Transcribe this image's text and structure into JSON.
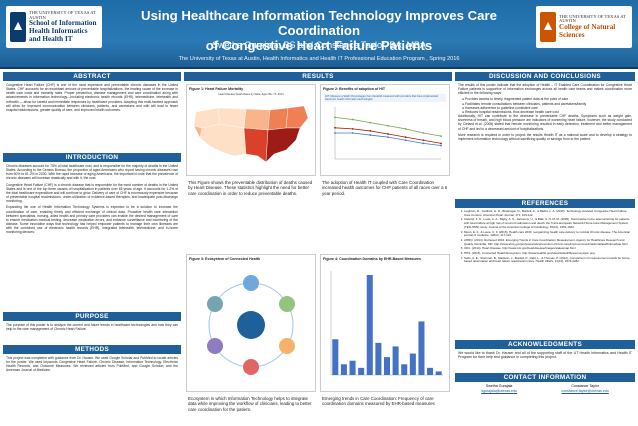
{
  "header": {
    "logo_left_top": "THE UNIVERSITY OF TEXAS AT AUSTIN",
    "logo_left_main": "School of Information",
    "logo_left_sub": "Health Informatics and Health IT",
    "logo_right_top": "THE UNIVERSITY OF TEXAS AT AUSTIN",
    "logo_right_main": "College of Natural Sciences",
    "title_line1": "Using Healthcare Information Technology Improves Care Coordination",
    "title_line2": "of Congestive Heart Failure Patients",
    "authors": "Swetha Gurajala, BS and Constance Taylor, BA, MBA",
    "affiliation": "The University of Texas at Austin, Health Informatics and Health IT Professional Education Program , Spring 2016"
  },
  "abstract": {
    "heading": "ABSTRACT",
    "text": "Congestive Heart Failure (CHF) is one of the most expensive and preventable chronic diseases in the United States. CHF accounts for an exorbitant amount of preventable hospitalizations, the leading cause of the increase in health care costs and mortality rates. Proper prevention, disease management and care coordination along with advancements in information technology—including electronic health records (EHR), telemedicine, telehealth and mHealth — allow for careful and immediate responses by healthcare providers. Adopting this multi-faceted approach will allow for improved communication between clinicians, patients, and caretakers and with will lead to fewer hospital readmissions, greater quality of care, and improved health outcomes."
  },
  "introduction": {
    "heading": "INTRODUCTION",
    "p1": "Chronic diseases account for 75% of total healthcare cost, and is responsible for the majority of deaths in the United States. According to the Census Bureau, the proportion of aged Americans who report having chronic diseases rose from 60% to 81.2% in 2030. With the rapid increase of aging Americans, the important to note that the prevalence of chronic diseases will increase drastically and with it, the cost.",
    "p2": "Congestive Heart Failure (CHF) is a chronic disease that is responsible for the most number of deaths in the United States and is one of the top three causes of hospitalization in patients over 65 years of age. It accounts for 1-2% of the total healthcare expenditure and will continue to grow. Delivery of care of CHF is enormously expensive because of preventable hospital readmissions, under-utilization of evidence-based therapies, and inadequate post-discharge monitoring.",
    "p3": "Expanding the use of Health Information Technology Systems is expected to be a solution to increase the coordination of care, enabling timely and efficient exchange of clinical data. Proactive health care interaction between specialists, nursing, allied health and primary care providers can enable the desired management of care to ensure medication medical testing, decrease medication errors, and enhance surveillance and monitoring of the disease. Some innovative ways that technology has helped empower patients to manage their own illnesses are with the combined use of electronic health records (EHR), integrated telehealth, telemedicine, and in-home monitoring devices."
  },
  "purpose": {
    "heading": "PURPOSE",
    "text": "The purpose of this poster is to analyze the current and future trends in healthcare technologies and how they can help in the care management of Chronic Heart Failure."
  },
  "methods": {
    "heading": "METHODS",
    "text": "This project was completed with guidance from Dr. Hauser. We used Google Scholar and PubMed to locate articles for the poster. We used keywords Congestive Heart Failure, Chronic Disease, Information Technology, Electronic Health Records, and Outcome Measures. We reviewed articles from PubMed, and Google Scholar, and the American Journal of Medicine."
  },
  "results": {
    "heading": "RESULTS",
    "fig1_caption": "Figure 1: Heart Failure Mortality",
    "fig1_map_title": "Heart Disease Death Rates by State, Ages 65+ Th. 2014",
    "fig1_desc": "This Figure shows the preventable distribution of deaths caused by Heart Disease. These statistics highlight the need for better care coordination in order to reduce preventable deaths.",
    "fig2_caption": "Figure 2: Benefits of adoption of HIT",
    "fig2_banner": "HIT: Measure of EHR: Percentages from the EHR measured with providers that have implemented electronic health information technologies",
    "fig2_desc": "The adoption of Health IT coupled with Care Coordination increased health outcomes for CHF patients of all races over a 6 year period.",
    "fig3_caption": "Figure 3: Ecosystem of Connected Health",
    "fig3_desc": "Ecosystem in which Information Technology helps to integrate data while improving the workflow of clinicians, leading to better care coordination for the patient.",
    "fig4_caption": "Figure 4: Coordination Domains by EHR-Based Measures",
    "fig4_desc": "Emerging trends in Care Coordination: Frequency of care coordination domains measured by EHR-based measures"
  },
  "discussion": {
    "heading": "DISCUSSION AND CONCLUSIONS",
    "p1": "The results of this poster indicate that the adoption of Health – IT Enabled Care Coordination for Congestive Heart Failure patients is supportive of information exchanges across all health care teams and makes coordination more efficient in the following ways:",
    "bullets": [
      "Provides access to timely, fragmented patient data at the point of care",
      "Facilitates remote consultations between clinicians, patients and caretakers/family",
      "Increases adherence to guideline-consistent care",
      "Reduces hospital readmissions, thus decrease health care cost"
    ],
    "p2": "Additionally, HIT can contribute to the decrease in preventable CHF deaths. Symptoms such as weight gain, shortness of breath, and high blood pressure are indicators of worsening heart failure, however, the study conducted by Cleland et.al. (2005) stated that remote monitoring resulted in early detection, treatment and better management of CHF and led to a decreased amount of hospitalizations.",
    "p3": "More research is required in order to project the results Health IT as a national scale and to develop a strategy to implement information technology without sacrificing quality or savings from to the patient."
  },
  "references": {
    "heading": "REFERENCES",
    "items": [
      "Leighton, R., Yardbird, G. R., Bhatnagar, D., Bartlett, A., & Barba, L. A. (2015). Technology-Assisted Congestive Heart Failure Care Centers. American Heart Journal, 171, 103-112.",
      "Cleland, J. G., Louis, A. A., Rigby, A. S., Janssens, U., & Balk, A. H. M. M. (2005). Noninvasive home telemonitoring for patients with heart failure at high risk of recurrent admission and death: the Trans-European Network-Home-Care Management System (TEN-HMS) study. Journal of the American College of Cardiology, 45(10), 1654-1664.",
      "Moon, E. F., & Louie, C. F. (2015). Health care 2030: reorganizing health care delivery to combat chronic disease. The American journal of medicine, 128(2), 117-123.",
      "AHRQ. (2014). Retrieved 2016. Emerging Trends in Care Coordination Measurement. Agency for Healthcare Research and Quality, Rockville, MD. http://www.ahrq.gov/professionals/prevention-chronic-care/improve/coordination/atlas2014/update.html",
      "CDC. (2014). Heart Disease. http://www.cdc.gov/heartdisease/images/statesmap.html",
      "HHS. (2015). Connected Health Ecosystem. http://www.healthit.gov/sites/default/files/ecosystem.png",
      "Seifu, A. E., Sherman, B., Madison, J., Burdell, P., Dahl, L., & Thomas, P. (2012). Comparison of measurement results for home-based observation and heart failure readmission rates. Health Affairs, 31(10), 2274-2282."
    ]
  },
  "acknowledgments": {
    "heading": "ACKNOWLEDGMENTS",
    "text": "We would like to thank Dr. Hauser and all of the supporting staff of the UT Health Informatics and Health IT Program for their help and guidance in completing this project."
  },
  "contact": {
    "heading": "CONTACT INFORMATION",
    "name1": "Swetha Gurajala",
    "email1": "sgurajala@utexas.edu",
    "name2": "Constance Taylor",
    "email2": "constance.taylor@utexas.edu"
  },
  "chart_data": [
    {
      "type": "line",
      "title": "Figure 2: Benefits of adoption of HIT",
      "x": [
        1,
        2,
        3,
        4,
        5,
        6,
        7
      ],
      "series": [
        {
          "values": [
            0.6,
            0.58,
            0.55,
            0.52,
            0.49,
            0.45,
            0.42
          ]
        },
        {
          "values": [
            0.5,
            0.49,
            0.47,
            0.44,
            0.41,
            0.38,
            0.35
          ]
        },
        {
          "values": [
            0.45,
            0.45,
            0.43,
            0.41,
            0.38,
            0.35,
            0.33
          ]
        }
      ],
      "colors": [
        "#6aa84f",
        "#a61c00",
        "#3c78d8"
      ]
    },
    {
      "type": "bar",
      "title": "Figure 4: Coordination Domains by EHR-Based Measures",
      "values": [
        10,
        3,
        4,
        2,
        28,
        9,
        5,
        8,
        3,
        6,
        15,
        2,
        1
      ],
      "color": "#4472c4"
    }
  ],
  "theme": {
    "header_blue": "#1f6ca8",
    "section_header": "#1f5f9a",
    "map_colors": [
      "#fde0c5",
      "#f8b48a",
      "#ef7f55",
      "#d9412b",
      "#9e1c17"
    ]
  }
}
